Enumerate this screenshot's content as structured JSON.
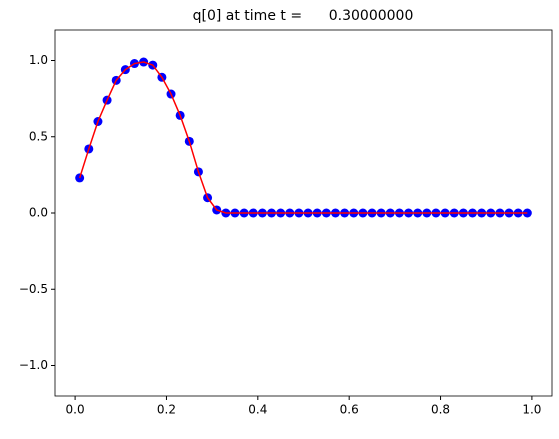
{
  "chart_data": {
    "type": "line",
    "title": "q[0] at time t =      0.30000000",
    "x": [
      0.01,
      0.03,
      0.05,
      0.07,
      0.09,
      0.11,
      0.13,
      0.15,
      0.17,
      0.19,
      0.21,
      0.23,
      0.25,
      0.27,
      0.29,
      0.31,
      0.33,
      0.35,
      0.37,
      0.39,
      0.41,
      0.43,
      0.45,
      0.47,
      0.49,
      0.51,
      0.53,
      0.55,
      0.57,
      0.59,
      0.61,
      0.63,
      0.65,
      0.67,
      0.69,
      0.71,
      0.73,
      0.75,
      0.77,
      0.79,
      0.81,
      0.83,
      0.85,
      0.87,
      0.89,
      0.91,
      0.93,
      0.95,
      0.97,
      0.99
    ],
    "series": [
      {
        "color": "#0000ff",
        "marker": "o",
        "values": [
          0.23,
          0.42,
          0.6,
          0.74,
          0.87,
          0.94,
          0.98,
          0.99,
          0.97,
          0.89,
          0.78,
          0.64,
          0.47,
          0.27,
          0.1,
          0.02,
          0,
          0,
          0,
          0,
          0,
          0,
          0,
          0,
          0,
          0,
          0,
          0,
          0,
          0,
          0,
          0,
          0,
          0,
          0,
          0,
          0,
          0,
          0,
          0,
          0,
          0,
          0,
          0,
          0,
          0,
          0,
          0,
          0,
          0
        ]
      },
      {
        "color": "#ff0000",
        "values": [
          0.23,
          0.42,
          0.6,
          0.74,
          0.87,
          0.94,
          0.98,
          0.99,
          0.97,
          0.89,
          0.78,
          0.64,
          0.47,
          0.27,
          0.1,
          0.02,
          0,
          0,
          0,
          0,
          0,
          0,
          0,
          0,
          0,
          0,
          0,
          0,
          0,
          0,
          0,
          0,
          0,
          0,
          0,
          0,
          0,
          0,
          0,
          0,
          0,
          0,
          0,
          0,
          0,
          0,
          0,
          0,
          0,
          0
        ]
      }
    ],
    "xlim": [
      -0.044,
      1.044
    ],
    "ylim": [
      -1.2,
      1.2
    ],
    "xticks": [
      {
        "value": 0,
        "label": "0.0"
      },
      {
        "value": 0.2,
        "label": "0.2"
      },
      {
        "value": 0.4,
        "label": "0.4"
      },
      {
        "value": 0.6,
        "label": "0.6"
      },
      {
        "value": 0.8,
        "label": "0.8"
      },
      {
        "value": 1,
        "label": "1.0"
      }
    ],
    "yticks": [
      {
        "value": -1,
        "label": "−1.0"
      },
      {
        "value": -0.5,
        "label": "−0.5"
      },
      {
        "value": 0,
        "label": "0.0"
      },
      {
        "value": 0.5,
        "label": "0.5"
      },
      {
        "value": 1,
        "label": "1.0"
      }
    ]
  }
}
